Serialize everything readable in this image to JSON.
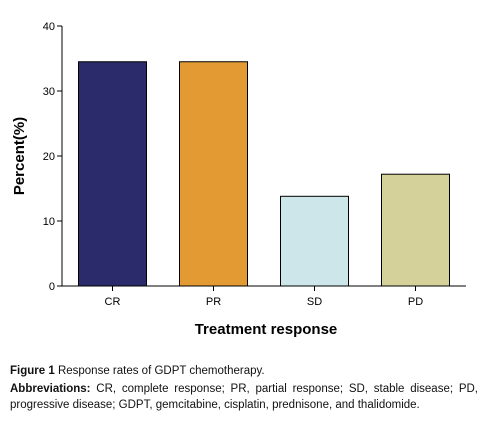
{
  "chart_data": {
    "type": "bar",
    "categories": [
      "CR",
      "PR",
      "SD",
      "PD"
    ],
    "values": [
      34.5,
      34.5,
      13.8,
      17.2
    ],
    "colors": [
      "#2b2b6b",
      "#e39a33",
      "#cce6ea",
      "#d4d19b"
    ],
    "xlabel": "Treatment response",
    "ylabel": "Percent(%)",
    "ylim": [
      0,
      40
    ],
    "yticks": [
      "0",
      "10",
      "20",
      "30",
      "40"
    ],
    "grid": false,
    "legend": "none"
  },
  "caption": {
    "figure_label": "Figure 1",
    "figure_text": "Response rates of GDPT chemotherapy.",
    "abbr_label": "Abbreviations:",
    "abbr_text": "CR, complete response; PR, partial response; SD, stable disease; PD, progressive disease; GDPT, gemcitabine, cisplatin, prednisone, and thalidomide."
  }
}
